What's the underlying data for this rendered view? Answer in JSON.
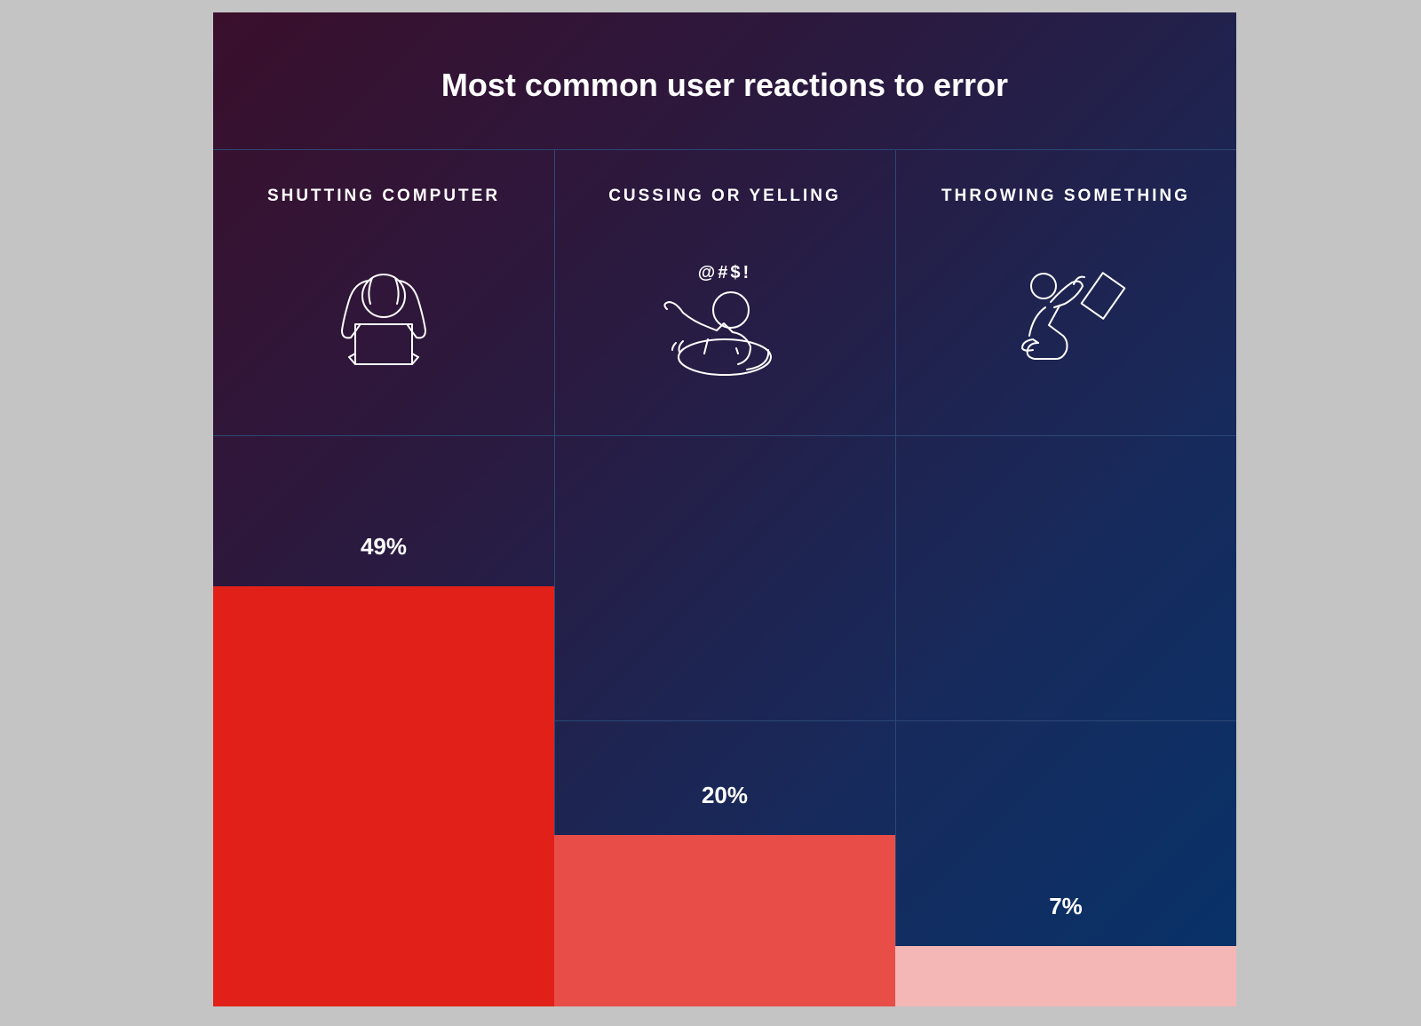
{
  "title": "Most common user reactions to error",
  "chart_data": {
    "type": "bar",
    "title": "Most common user reactions to error",
    "categories": [
      "SHUTTING COMPUTER",
      "CUSSING OR YELLING",
      "THROWING SOMETHING"
    ],
    "values": [
      49,
      20,
      7
    ],
    "value_labels": [
      "49%",
      "20%",
      "7%"
    ],
    "unit": "%",
    "ylim": [
      0,
      100
    ],
    "colors": [
      "#e12119",
      "#e84e47",
      "#f4b7b5"
    ],
    "icons": [
      "person-with-laptop-icon",
      "person-cussing-icon",
      "person-throwing-icon"
    ],
    "cussing_symbols": "@#$!"
  }
}
